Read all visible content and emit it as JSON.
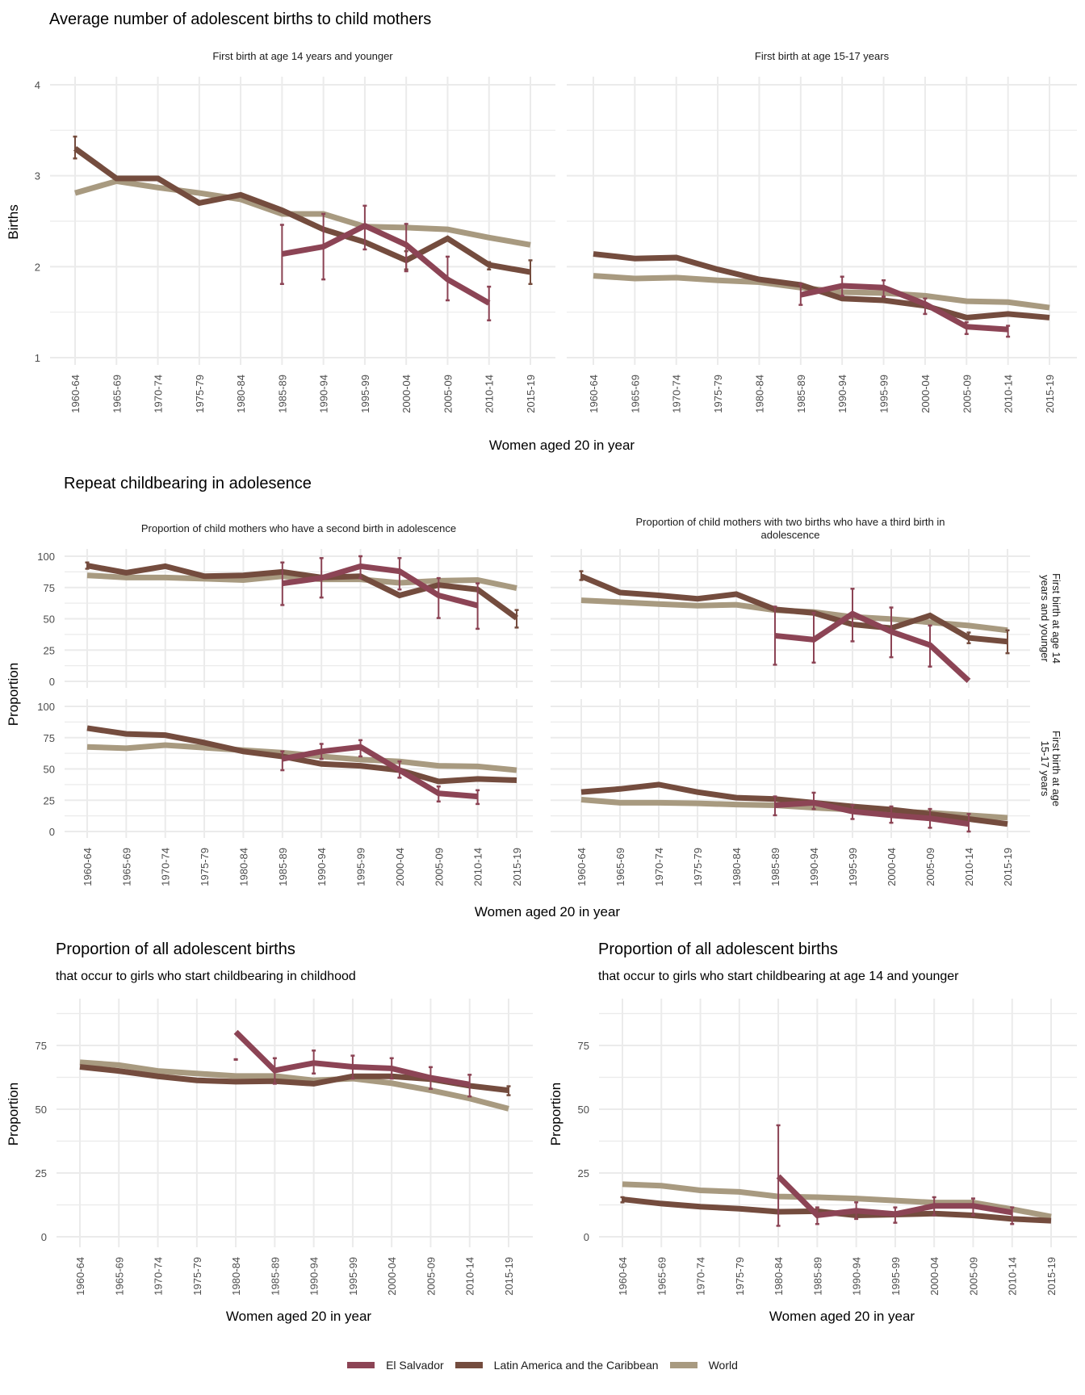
{
  "figure": {
    "colors": {
      "El Salvador": "#8c4455",
      "Latin America and the Caribbean": "#744c3e",
      "World": "#a89a80"
    },
    "legend": [
      "El Salvador",
      "Latin America and the Caribbean",
      "World"
    ]
  },
  "chart_data": [
    {
      "id": "avg-births",
      "type": "line",
      "title": "Average number of adolescent births to child mothers",
      "xlabel": "Women aged 20 in year",
      "ylabel": "Births",
      "ylim": [
        1,
        4
      ],
      "yticks": [
        1,
        2,
        3,
        4
      ],
      "grid": true,
      "categories": [
        "1960-64",
        "1965-69",
        "1970-74",
        "1975-79",
        "1980-84",
        "1985-89",
        "1990-94",
        "1995-99",
        "2000-04",
        "2005-09",
        "2010-14",
        "2015-19"
      ],
      "panels": [
        {
          "strip": "First birth at age 14 years and younger",
          "series": [
            {
              "name": "World",
              "values": [
                2.81,
                2.94,
                2.87,
                2.81,
                2.74,
                2.58,
                2.58,
                2.44,
                2.43,
                2.41,
                2.32,
                2.24
              ]
            },
            {
              "name": "Latin America and the Caribbean",
              "values": [
                3.3,
                2.97,
                2.97,
                2.7,
                2.79,
                2.62,
                2.41,
                2.27,
                2.07,
                2.31,
                2.02,
                1.94
              ],
              "error": [
                [
                  3.19,
                  3.43
                ],
                null,
                null,
                null,
                null,
                null,
                null,
                null,
                [
                  1.97,
                  2.17
                ],
                null,
                [
                  1.97,
                  2.05
                ],
                [
                  1.81,
                  2.07
                ]
              ]
            },
            {
              "name": "El Salvador",
              "values": [
                null,
                null,
                null,
                null,
                null,
                2.14,
                2.22,
                2.45,
                2.24,
                1.86,
                1.6,
                null
              ],
              "error": [
                null,
                null,
                null,
                null,
                null,
                [
                  1.81,
                  2.46
                ],
                [
                  1.86,
                  2.58
                ],
                [
                  2.19,
                  2.67
                ],
                [
                  1.95,
                  2.47
                ],
                [
                  1.63,
                  2.11
                ],
                [
                  1.41,
                  1.78
                ],
                null
              ]
            }
          ]
        },
        {
          "strip": "First birth at age 15-17 years",
          "series": [
            {
              "name": "World",
              "values": [
                1.9,
                1.87,
                1.88,
                1.85,
                1.83,
                1.77,
                1.72,
                1.71,
                1.68,
                1.62,
                1.61,
                1.55
              ]
            },
            {
              "name": "Latin America and the Caribbean",
              "values": [
                2.14,
                2.09,
                2.1,
                1.97,
                1.86,
                1.8,
                1.65,
                1.63,
                1.57,
                1.44,
                1.48,
                1.44
              ]
            },
            {
              "name": "El Salvador",
              "values": [
                null,
                null,
                null,
                null,
                null,
                1.69,
                1.79,
                1.77,
                1.59,
                1.34,
                1.31,
                null
              ],
              "error": [
                null,
                null,
                null,
                null,
                null,
                [
                  1.58,
                  1.81
                ],
                [
                  1.68,
                  1.89
                ],
                [
                  1.67,
                  1.85
                ],
                [
                  1.48,
                  1.65
                ],
                [
                  1.26,
                  1.39
                ],
                [
                  1.23,
                  1.35
                ],
                null
              ]
            }
          ]
        }
      ]
    },
    {
      "id": "repeat-childbearing",
      "type": "line",
      "title": "Repeat childbearing in adolesence",
      "xlabel": "Women aged 20 in year",
      "ylabel": "Proportion",
      "ylim": [
        0,
        100
      ],
      "yticks": [
        0,
        25,
        50,
        75,
        100
      ],
      "grid": true,
      "categories": [
        "1960-64",
        "1965-69",
        "1970-74",
        "1975-79",
        "1980-84",
        "1985-89",
        "1990-94",
        "1995-99",
        "2000-04",
        "2005-09",
        "2010-14",
        "2015-19"
      ],
      "column_strips": [
        "Proportion of child mothers who have a second birth in adolescence",
        "Proportion of child mothers with two births who have a third birth in adolescence"
      ],
      "row_strips": [
        "First birth at age 14 years and younger",
        "First birth at age 15-17 years"
      ],
      "panels": [
        {
          "row": 0,
          "col": 0,
          "series": [
            {
              "name": "World",
              "values": [
                84.7,
                83,
                83,
                82,
                81,
                84,
                81.5,
                81.5,
                78.7,
                80.4,
                81,
                74.5
              ]
            },
            {
              "name": "Latin America and the Caribbean",
              "values": [
                92.5,
                86.8,
                92,
                84,
                84.7,
                87.5,
                83,
                84,
                68.7,
                77,
                73.4,
                50.6
              ],
              "error": [
                [
                  90,
                  95
                ],
                null,
                null,
                null,
                null,
                null,
                null,
                null,
                null,
                null,
                null,
                [
                  43,
                  57
                ]
              ]
            },
            {
              "name": "El Salvador",
              "values": [
                null,
                null,
                null,
                null,
                null,
                78.3,
                82.6,
                92,
                88,
                68.7,
                60.6,
                null
              ],
              "error": [
                null,
                null,
                null,
                null,
                null,
                [
                  61,
                  95
                ],
                [
                  67,
                  98.5
                ],
                [
                  82.5,
                  100
                ],
                [
                  73.4,
                  98.5
                ],
                [
                  50.6,
                  82.5
                ],
                [
                  42,
                  78.3
                ],
                null
              ]
            }
          ]
        },
        {
          "row": 0,
          "col": 1,
          "series": [
            {
              "name": "World",
              "values": [
                64.8,
                63.3,
                61.8,
                60.5,
                61.2,
                56.9,
                55.4,
                51.5,
                49.8,
                47.2,
                44.6,
                40.8
              ]
            },
            {
              "name": "Latin America and the Caribbean",
              "values": [
                84,
                71,
                68.7,
                66,
                69.7,
                57.5,
                54.7,
                45.5,
                42.5,
                52.6,
                34.8,
                31.8
              ],
              "error": [
                [
                  81,
                  88
                ],
                null,
                null,
                null,
                null,
                null,
                null,
                null,
                null,
                null,
                [
                  30.5,
                  39
                ],
                [
                  22.5,
                  40.8
                ]
              ]
            },
            {
              "name": "El Salvador",
              "values": [
                null,
                null,
                null,
                null,
                null,
                36.5,
                33.3,
                54,
                39.7,
                29,
                0.4,
                null
              ],
              "error": [
                null,
                null,
                null,
                null,
                null,
                [
                  13.3,
                  59.7
                ],
                [
                  15,
                  54.7
                ],
                [
                  32,
                  74
                ],
                [
                  19.3,
                  59
                ],
                [
                  11.8,
                  44.6
                ],
                null,
                null
              ]
            }
          ]
        },
        {
          "row": 1,
          "col": 0,
          "series": [
            {
              "name": "World",
              "values": [
                67.6,
                66.5,
                69,
                67,
                65,
                63,
                60,
                57.5,
                56,
                52.5,
                52,
                49
              ]
            },
            {
              "name": "Latin America and the Caribbean",
              "values": [
                82.6,
                78,
                77,
                71,
                64,
                60,
                54,
                52.5,
                49,
                40,
                42,
                41
              ]
            },
            {
              "name": "El Salvador",
              "values": [
                null,
                null,
                null,
                null,
                null,
                58,
                64,
                67.6,
                49,
                30.5,
                28,
                null
              ],
              "error": [
                null,
                null,
                null,
                null,
                null,
                [
                  49,
                  64
                ],
                [
                  58,
                  70
                ],
                [
                  60,
                  73
                ],
                [
                  43,
                  56
                ],
                [
                  24,
                  36
                ],
                [
                  22,
                  33
                ],
                null
              ]
            }
          ]
        },
        {
          "row": 1,
          "col": 1,
          "series": [
            {
              "name": "World",
              "values": [
                25.5,
                23,
                23,
                22.5,
                21.5,
                21,
                19,
                17.5,
                16,
                15,
                13,
                11
              ]
            },
            {
              "name": "Latin America and the Caribbean",
              "values": [
                31.5,
                34,
                37.5,
                31.5,
                27,
                26,
                23,
                20,
                17.5,
                14,
                10,
                6
              ]
            },
            {
              "name": "El Salvador",
              "values": [
                null,
                null,
                null,
                null,
                null,
                21,
                23,
                16,
                13,
                10.5,
                6,
                null
              ],
              "error": [
                null,
                null,
                null,
                null,
                null,
                [
                  13,
                  28
                ],
                [
                  18,
                  31
                ],
                [
                  10,
                  21
                ],
                [
                  7,
                  20
                ],
                [
                  3,
                  18
                ],
                [
                  0,
                  14
                ],
                null
              ]
            }
          ]
        }
      ]
    },
    {
      "id": "share-childhood",
      "type": "line",
      "title": "Proportion of all adolescent births",
      "subtitle": "that occur to girls who start childbearing in childhood",
      "xlabel": "Women aged 20 in year",
      "ylabel": "Proportion",
      "ylim": [
        0,
        87.5
      ],
      "yticks": [
        0,
        25,
        50,
        75
      ],
      "grid": true,
      "categories": [
        "1960-64",
        "1965-69",
        "1970-74",
        "1975-79",
        "1980-84",
        "1985-89",
        "1990-94",
        "1995-99",
        "2000-04",
        "2005-09",
        "2010-14",
        "2015-19"
      ],
      "series": [
        {
          "name": "World",
          "values": [
            68.4,
            67.3,
            65,
            64,
            63,
            63,
            61.3,
            62,
            60.2,
            57.4,
            54.2,
            50.2
          ]
        },
        {
          "name": "Latin America and the Caribbean",
          "values": [
            66.6,
            65,
            62.9,
            61.3,
            60.8,
            61,
            60,
            62.9,
            62.9,
            61.8,
            59.2,
            57.4
          ],
          "error": [
            null,
            null,
            null,
            null,
            null,
            null,
            null,
            null,
            null,
            null,
            null,
            [
              55.5,
              59
            ]
          ]
        },
        {
          "name": "El Salvador",
          "values": [
            null,
            null,
            null,
            null,
            80.3,
            65.2,
            68.1,
            66.6,
            66,
            62.3,
            59.7,
            null
          ],
          "error": [
            null,
            null,
            null,
            null,
            [
              69.4,
              69.6
            ],
            [
              60,
              70
            ],
            [
              64,
              73
            ],
            [
              62,
              71
            ],
            [
              62,
              70
            ],
            [
              58,
              66.5
            ],
            [
              55,
              63.5
            ],
            null
          ]
        }
      ]
    },
    {
      "id": "share-14-younger",
      "type": "line",
      "title": "Proportion of all adolescent births",
      "subtitle": "that occur to girls who start childbearing at age 14 and younger",
      "xlabel": "Women aged 20 in year",
      "ylabel": "Proportion",
      "ylim": [
        0,
        87.5
      ],
      "yticks": [
        0,
        25,
        50,
        75
      ],
      "grid": true,
      "categories": [
        "1960-64",
        "1965-69",
        "1970-74",
        "1975-79",
        "1980-84",
        "1985-89",
        "1990-94",
        "1995-99",
        "2000-04",
        "2005-09",
        "2010-14",
        "2015-19"
      ],
      "series": [
        {
          "name": "World",
          "values": [
            20.6,
            20,
            18.2,
            17.6,
            15.8,
            15.5,
            15,
            14.2,
            13.4,
            13.4,
            10.8,
            7.9
          ]
        },
        {
          "name": "Latin America and the Caribbean",
          "values": [
            14.7,
            13,
            11.8,
            11,
            9.8,
            10,
            8.4,
            8.7,
            9.1,
            8.4,
            7,
            6.3
          ],
          "error": [
            [
              13.5,
              15.5
            ],
            null,
            null,
            null,
            null,
            null,
            null,
            null,
            null,
            null,
            null,
            null
          ]
        },
        {
          "name": "El Salvador",
          "values": [
            null,
            null,
            null,
            null,
            23.7,
            8.4,
            10.2,
            8.9,
            12.1,
            12.1,
            9.5,
            null
          ],
          "error": [
            null,
            null,
            null,
            null,
            [
              4.3,
              43.7
            ],
            [
              5,
              11.5
            ],
            [
              7,
              13.5
            ],
            [
              5.5,
              11.5
            ],
            [
              8.5,
              15.5
            ],
            [
              8.5,
              15
            ],
            [
              5,
              11.5
            ],
            null
          ]
        }
      ]
    }
  ]
}
